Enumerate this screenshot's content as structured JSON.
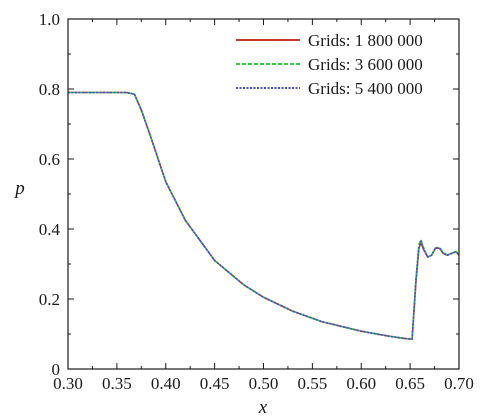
{
  "chart_data": {
    "type": "line",
    "xlabel": "x",
    "ylabel": "p",
    "xlim": [
      0.3,
      0.7
    ],
    "ylim": [
      0,
      1.0
    ],
    "x_ticks": [
      "0.30",
      "0.35",
      "0.40",
      "0.45",
      "0.50",
      "0.55",
      "0.60",
      "0.65",
      "0.70"
    ],
    "y_ticks": [
      "0",
      "0.2",
      "0.4",
      "0.6",
      "0.8",
      "1.0"
    ],
    "grid": false,
    "legend_position": "top-right",
    "series": [
      {
        "name": "Grids: 1 800 000",
        "color": "#c0392b",
        "dash": "solid",
        "x": [
          0.3,
          0.36,
          0.368,
          0.375,
          0.385,
          0.4,
          0.42,
          0.45,
          0.48,
          0.5,
          0.53,
          0.56,
          0.6,
          0.63,
          0.645,
          0.652,
          0.656,
          0.659,
          0.661,
          0.664,
          0.668,
          0.672,
          0.676,
          0.68,
          0.684,
          0.688,
          0.692,
          0.697,
          0.7
        ],
        "y": [
          0.79,
          0.79,
          0.785,
          0.74,
          0.66,
          0.535,
          0.425,
          0.31,
          0.24,
          0.205,
          0.165,
          0.135,
          0.108,
          0.093,
          0.087,
          0.085,
          0.25,
          0.345,
          0.36,
          0.34,
          0.32,
          0.325,
          0.345,
          0.345,
          0.33,
          0.325,
          0.33,
          0.335,
          0.325
        ]
      },
      {
        "name": "Grids: 3 600 000",
        "color": "#2ecc40",
        "dash": "dashed",
        "x": [
          0.3,
          0.36,
          0.368,
          0.375,
          0.385,
          0.4,
          0.42,
          0.45,
          0.48,
          0.5,
          0.53,
          0.56,
          0.6,
          0.63,
          0.645,
          0.652,
          0.656,
          0.659,
          0.661,
          0.664,
          0.668,
          0.672,
          0.676,
          0.68,
          0.684,
          0.688,
          0.692,
          0.697,
          0.7
        ],
        "y": [
          0.79,
          0.79,
          0.785,
          0.74,
          0.66,
          0.535,
          0.425,
          0.31,
          0.24,
          0.205,
          0.165,
          0.135,
          0.108,
          0.093,
          0.087,
          0.085,
          0.26,
          0.355,
          0.37,
          0.345,
          0.32,
          0.325,
          0.347,
          0.347,
          0.332,
          0.326,
          0.33,
          0.336,
          0.326
        ]
      },
      {
        "name": "Grids: 5 400 000",
        "color": "#3b4fd8",
        "dash": "dotted",
        "x": [
          0.3,
          0.36,
          0.368,
          0.375,
          0.385,
          0.4,
          0.42,
          0.45,
          0.48,
          0.5,
          0.53,
          0.56,
          0.6,
          0.63,
          0.645,
          0.652,
          0.656,
          0.659,
          0.661,
          0.664,
          0.668,
          0.672,
          0.676,
          0.68,
          0.684,
          0.688,
          0.692,
          0.697,
          0.7
        ],
        "y": [
          0.79,
          0.79,
          0.785,
          0.74,
          0.66,
          0.535,
          0.425,
          0.31,
          0.24,
          0.205,
          0.165,
          0.135,
          0.108,
          0.093,
          0.087,
          0.085,
          0.255,
          0.35,
          0.365,
          0.342,
          0.32,
          0.325,
          0.346,
          0.346,
          0.331,
          0.325,
          0.33,
          0.335,
          0.325
        ]
      }
    ]
  }
}
